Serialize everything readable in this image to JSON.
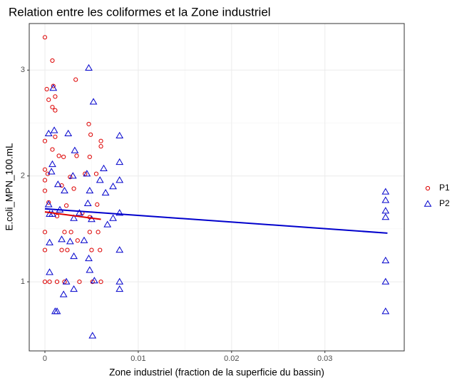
{
  "chart_data": {
    "type": "scatter",
    "title": "Relation entre les coliformes et la Zone industriel",
    "x_label": "Zone industriel (fraction de la superficie du bassin)",
    "y_label": "E.coli_MPN_100.mL",
    "xlim": [
      -0.00168,
      0.0385
    ],
    "ylim": [
      0.347,
      3.44
    ],
    "xticks": [
      0.0,
      0.01,
      0.02,
      0.03
    ],
    "yticks": [
      1,
      2,
      3
    ],
    "grid": true,
    "legend_position": "right",
    "series": [
      {
        "name": "P1",
        "color": "#dd0000",
        "marker": "circle",
        "x": [
          0,
          0,
          0,
          0,
          0,
          0,
          0,
          0,
          0.0002,
          0.0004,
          0.0003,
          0.0004,
          0.0005,
          0.0008,
          0.0008,
          0.0008,
          0.0009,
          0.0011,
          0.0011,
          0.0011,
          0.0013,
          0.0013,
          0.0015,
          0.0018,
          0.0018,
          0.002,
          0.0021,
          0.0021,
          0.0023,
          0.0024,
          0.0027,
          0.0028,
          0.0031,
          0.0033,
          0.0034,
          0.0035,
          0.0037,
          0.004,
          0.0043,
          0.0047,
          0.0049,
          0.0048,
          0.0048,
          0.0048,
          0.005,
          0.0051,
          0.0055,
          0.0056,
          0.0059,
          0.006,
          0.006,
          0.006,
          0.0057
        ],
        "y": [
          3.31,
          2.33,
          2.06,
          1.96,
          1.86,
          1.47,
          1.3,
          1.0,
          2.82,
          2.72,
          2.02,
          1.75,
          1.0,
          3.09,
          2.65,
          2.25,
          2.85,
          2.62,
          2.75,
          2.37,
          1.62,
          1.0,
          2.19,
          1.91,
          1.3,
          2.18,
          1.47,
          1.0,
          1.72,
          1.3,
          1.99,
          1.47,
          1.88,
          2.91,
          2.19,
          1.39,
          1.0,
          1.65,
          2.02,
          2.49,
          2.39,
          2.18,
          1.61,
          1.47,
          1.3,
          1.0,
          2.02,
          1.73,
          1.3,
          2.33,
          2.28,
          1.0,
          1.47
        ],
        "fit": {
          "x": [
            0,
            0.006
          ],
          "y": [
            1.66,
            1.59
          ]
        }
      },
      {
        "name": "P2",
        "color": "#0000cc",
        "marker": "triangle",
        "x": [
          0.0047,
          0.0052,
          0.0004,
          0.001,
          0.0009,
          0.0025,
          0.0008,
          0.0007,
          0.0004,
          0.0005,
          0.0005,
          0.0005,
          0.0008,
          0.0011,
          0.0013,
          0.0014,
          0.0016,
          0.0018,
          0.002,
          0.0021,
          0.0023,
          0.0027,
          0.003,
          0.0031,
          0.0031,
          0.0037,
          0.0042,
          0.0045,
          0.0046,
          0.0047,
          0.0048,
          0.0048,
          0.005,
          0.0051,
          0.0053,
          0.0059,
          0.0063,
          0.0067,
          0.0073,
          0.0073,
          0.008,
          0.008,
          0.008,
          0.008,
          0.008,
          0.008,
          0.008,
          0.0031,
          0.0032,
          0.0065,
          0.0365,
          0.0365,
          0.0365,
          0.0365,
          0.0365,
          0.0365,
          0.0365
        ],
        "y": [
          3.02,
          2.7,
          2.4,
          2.43,
          2.83,
          2.4,
          2.11,
          2.04,
          1.73,
          1.64,
          1.37,
          1.09,
          1.64,
          0.72,
          0.72,
          1.92,
          1.68,
          1.4,
          0.88,
          1.86,
          1.0,
          1.38,
          2.0,
          0.93,
          1.6,
          1.65,
          1.39,
          2.02,
          1.74,
          1.22,
          1.86,
          1.11,
          1.59,
          0.49,
          1.01,
          1.96,
          2.07,
          1.54,
          1.9,
          1.6,
          2.38,
          2.13,
          1.96,
          1.65,
          1.3,
          1.0,
          0.93,
          1.24,
          2.24,
          1.84,
          1.85,
          1.67,
          1.61,
          1.2,
          1.0,
          0.72,
          1.77
        ],
        "fit": {
          "x": [
            0,
            0.0367
          ],
          "y": [
            1.69,
            1.46
          ]
        }
      }
    ]
  }
}
